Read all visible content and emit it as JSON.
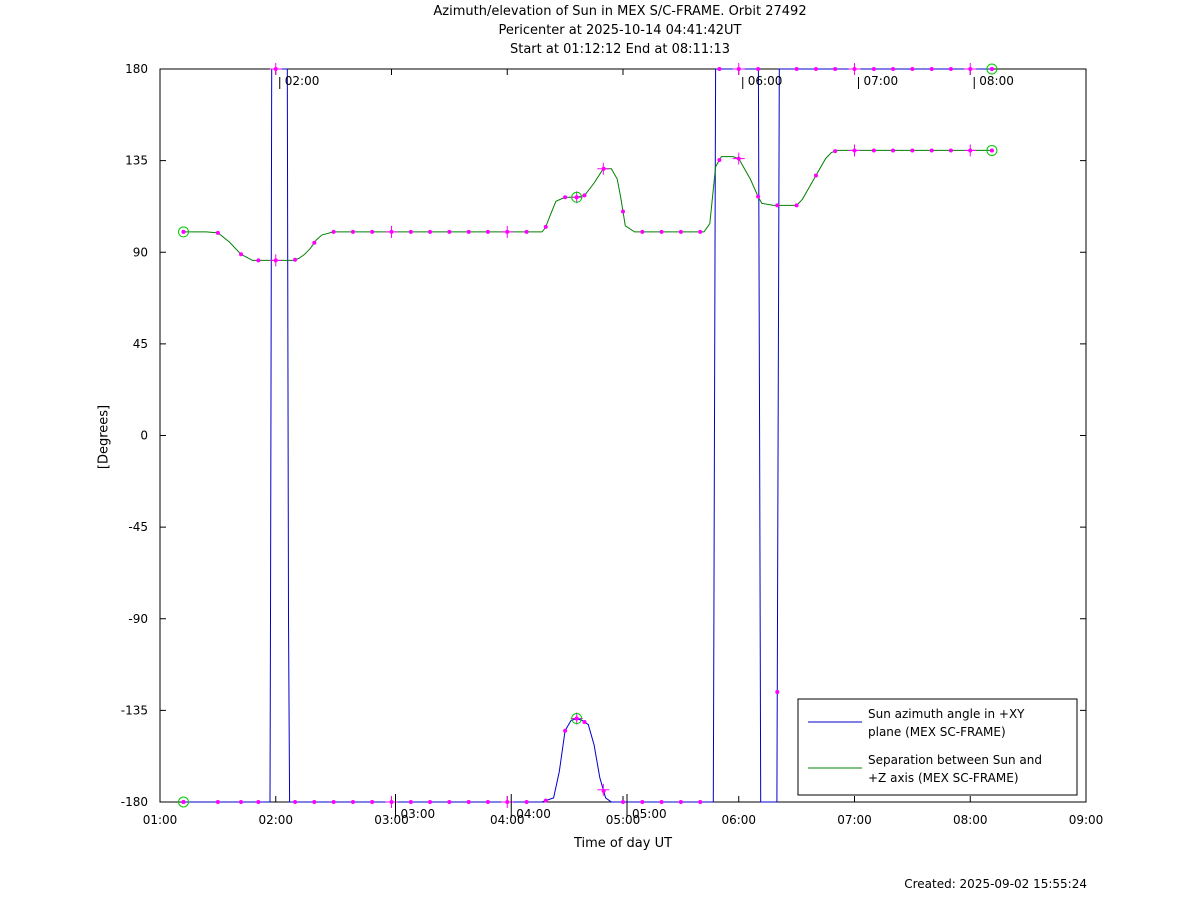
{
  "title": {
    "line1": "Azimuth/elevation of Sun in MEX S/C-FRAME.  Orbit 27492",
    "line2": "Pericenter at 2025-10-14 04:41:42UT",
    "line3": "Start at 01:12:12 End at 08:11:13"
  },
  "footer": {
    "created": "Created: 2025-09-02 15:55:24"
  },
  "chart_data": {
    "type": "line",
    "xlabel": "Time of day UT",
    "ylabel": "[Degrees]",
    "xlim": [
      1.0,
      9.0
    ],
    "ylim": [
      -180,
      180
    ],
    "x_ticks": [
      {
        "v": 1,
        "label": "01:00"
      },
      {
        "v": 2,
        "label": "02:00"
      },
      {
        "v": 3,
        "label": "03:00"
      },
      {
        "v": 4,
        "label": "04:00"
      },
      {
        "v": 5,
        "label": "05:00"
      },
      {
        "v": 6,
        "label": "06:00"
      },
      {
        "v": 7,
        "label": "07:00"
      },
      {
        "v": 8,
        "label": "08:00"
      },
      {
        "v": 9,
        "label": "09:00"
      }
    ],
    "y_ticks": [
      180,
      135,
      90,
      45,
      0,
      -45,
      -90,
      -135,
      -180
    ],
    "legend_position": "bottom-right",
    "series": [
      {
        "name_lines": [
          "Sun azimuth angle in +XY",
          "plane (MEX SC-FRAME)"
        ],
        "color": "#0000cc",
        "x": [
          1.203,
          1.95,
          1.955,
          1.965,
          2.1,
          2.11,
          2.12,
          2.6,
          3.0,
          3.5,
          4.0,
          4.3,
          4.4,
          4.45,
          4.5,
          4.55,
          4.6,
          4.65,
          4.7,
          4.75,
          4.8,
          4.85,
          4.9,
          5.0,
          5.3,
          5.78,
          5.785,
          5.795,
          5.8,
          6.0,
          6.17,
          6.18,
          6.19,
          6.33,
          6.34,
          6.35,
          6.5,
          7.0,
          7.5,
          8.0,
          8.187
        ],
        "y": [
          -180,
          -180,
          -90,
          180,
          180,
          -90,
          -180,
          -180,
          -180,
          -180,
          -180,
          -180,
          -178,
          -165,
          -145,
          -140,
          -139,
          -140,
          -142,
          -152,
          -168,
          -178,
          -180,
          -180,
          -180,
          -180,
          -90,
          90,
          180,
          180,
          180,
          0,
          -180,
          -180,
          0,
          180,
          180,
          180,
          180,
          180,
          180
        ]
      },
      {
        "name_lines": [
          "Separation between Sun and",
          "+Z axis (MEX SC-FRAME)"
        ],
        "color": "#008000",
        "x": [
          1.203,
          1.4,
          1.5,
          1.6,
          1.7,
          1.8,
          1.9,
          2.0,
          2.1,
          2.15,
          2.2,
          2.25,
          2.3,
          2.35,
          2.4,
          2.5,
          3.0,
          3.5,
          4.0,
          4.3,
          4.33,
          4.37,
          4.42,
          4.5,
          4.6,
          4.67,
          4.75,
          4.83,
          4.9,
          4.95,
          4.98,
          5.02,
          5.1,
          5.5,
          5.7,
          5.75,
          5.8,
          5.85,
          5.95,
          6.0,
          6.03,
          6.1,
          6.17,
          6.2,
          6.3,
          6.4,
          6.5,
          6.55,
          6.6,
          6.67,
          6.75,
          6.8,
          6.85,
          7.0,
          7.5,
          8.0,
          8.187
        ],
        "y": [
          100,
          100,
          99.5,
          95,
          89,
          86,
          86,
          86,
          86,
          86,
          87,
          89,
          92,
          96,
          98.5,
          100,
          100,
          100,
          100,
          100,
          102,
          108,
          115,
          117,
          117,
          118,
          124,
          131,
          131,
          126,
          117,
          103,
          100,
          100,
          100,
          104,
          132,
          137,
          137,
          136,
          133,
          126,
          117,
          114,
          113,
          113,
          113,
          116,
          121,
          128,
          136,
          139,
          140,
          140,
          140,
          140,
          140
        ]
      }
    ],
    "marker_x": [
      1.203,
      1.5,
      1.7,
      1.85,
      2.0,
      2.167,
      2.333,
      2.5,
      2.667,
      2.833,
      3.0,
      3.167,
      3.333,
      3.5,
      3.667,
      3.833,
      4.0,
      4.167,
      4.333,
      4.5,
      4.6,
      4.667,
      4.833,
      5.0,
      5.167,
      5.333,
      5.5,
      5.667,
      5.833,
      6.0,
      6.167,
      6.333,
      6.5,
      6.667,
      6.833,
      7.0,
      7.167,
      7.333,
      7.5,
      7.667,
      7.833,
      8.0,
      8.187
    ],
    "cross_marker_x": [
      2.0,
      3.0,
      4.0,
      4.6,
      4.83,
      6.0,
      7.0,
      8.0
    ],
    "circle_marker_x": [
      1.203,
      4.6,
      8.187
    ],
    "hour_marks": [
      {
        "x": 2.0,
        "label": "02:00",
        "pos": "top"
      },
      {
        "x": 3.0,
        "label": "03:00",
        "pos": "bottom"
      },
      {
        "x": 4.0,
        "label": "04:00",
        "pos": "bottom"
      },
      {
        "x": 5.0,
        "label": "05:00",
        "pos": "bottom"
      },
      {
        "x": 6.0,
        "label": "06:00",
        "pos": "top"
      },
      {
        "x": 7.0,
        "label": "07:00",
        "pos": "top"
      },
      {
        "x": 8.0,
        "label": "08:00",
        "pos": "top"
      }
    ],
    "marker_color": "#ff00ff",
    "circle_color": "#00cc00"
  }
}
